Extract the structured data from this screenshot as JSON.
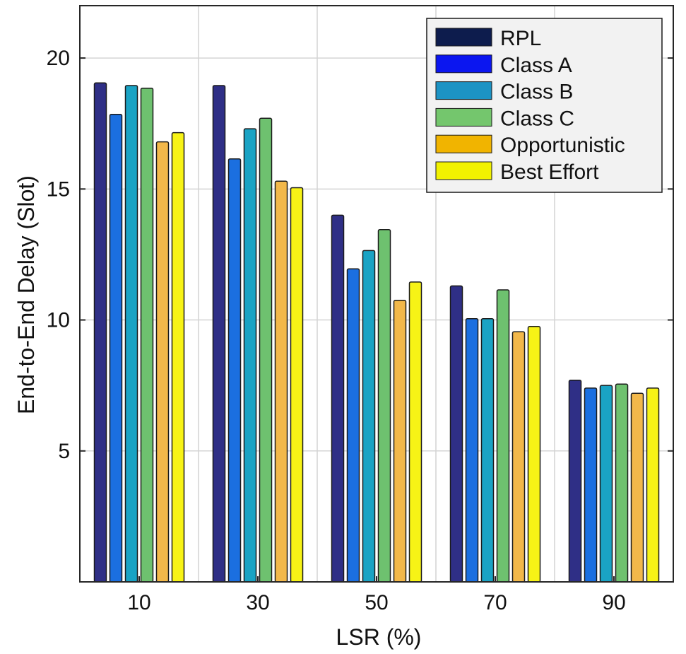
{
  "chart_data": {
    "type": "bar",
    "title": "",
    "xlabel": "LSR (%)",
    "ylabel": "End-to-End Delay (Slot)",
    "categories": [
      "10",
      "30",
      "50",
      "70",
      "90"
    ],
    "ylim": [
      0,
      22
    ],
    "yticks": [
      5,
      10,
      15,
      20
    ],
    "grid": true,
    "legend_position": "top-right",
    "series": [
      {
        "name": "RPL",
        "color": "#2f2f86",
        "legend_color": "#0d1c4d",
        "values": [
          19.05,
          18.95,
          14.0,
          11.3,
          7.7
        ]
      },
      {
        "name": "Class A",
        "color": "#1b6fe0",
        "legend_color": "#0b16f0",
        "values": [
          17.85,
          16.15,
          11.95,
          10.05,
          7.4
        ]
      },
      {
        "name": "Class B",
        "color": "#1aa3c4",
        "legend_color": "#1c93c4",
        "values": [
          18.95,
          17.3,
          12.65,
          10.05,
          7.5
        ]
      },
      {
        "name": "Class C",
        "color": "#6ec16f",
        "legend_color": "#74c66d",
        "values": [
          18.85,
          17.7,
          13.45,
          11.15,
          7.55
        ]
      },
      {
        "name": "Opportunistic",
        "color": "#f2b84a",
        "legend_color": "#f1b400",
        "values": [
          16.8,
          15.3,
          10.75,
          9.55,
          7.2
        ]
      },
      {
        "name": "Best Effort",
        "color": "#f7f316",
        "legend_color": "#f2f200",
        "values": [
          17.15,
          15.05,
          11.45,
          9.75,
          7.4
        ]
      }
    ]
  }
}
